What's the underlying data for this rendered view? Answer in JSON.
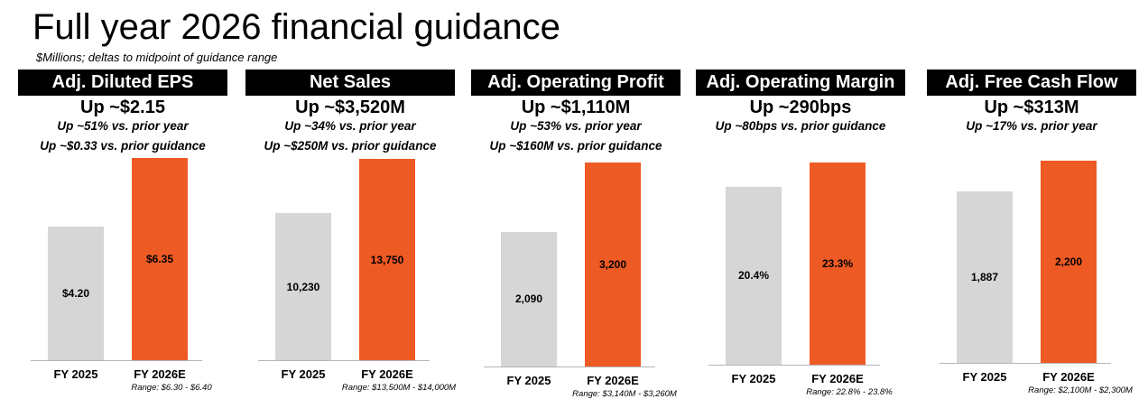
{
  "page": {
    "title": "Full year 2026 financial guidance",
    "subtitle": "$Millions; deltas to midpoint of guidance range"
  },
  "colors": {
    "header_bg": "#000000",
    "header_text": "#ffffff",
    "prior_bar": "#d6d6d6",
    "guidance_bar": "#ee5a24"
  },
  "panels": [
    {
      "header": "Adj. Diluted EPS",
      "headline": "Up ~$2.15",
      "sublines": [
        "Up ~51% vs. prior year",
        "Up ~$0.33 vs. prior guidance"
      ],
      "range_note": "Range: $6.30 - $6.40"
    },
    {
      "header": "Net Sales",
      "headline": "Up ~$3,520M",
      "sublines": [
        "Up ~34% vs. prior year",
        "Up ~$250M vs. prior guidance"
      ],
      "range_note": "Range: $13,500M - $14,000M"
    },
    {
      "header": "Adj. Operating Profit",
      "headline": "Up ~$1,110M",
      "sublines": [
        "Up ~53% vs. prior year",
        "Up ~$160M vs. prior guidance"
      ],
      "range_note": "Range: $3,140M - $3,260M"
    },
    {
      "header": "Adj. Operating Margin",
      "headline": "Up ~290bps",
      "sublines": [
        "Up ~80bps vs. prior guidance"
      ],
      "range_note": "Range: 22.8% - 23.8%"
    },
    {
      "header": "Adj. Free Cash Flow",
      "headline": "Up ~$313M",
      "sublines": [
        "Up ~17% vs. prior year"
      ],
      "range_note": "Range: $2,100M - $2,300M"
    }
  ],
  "chart_data": [
    {
      "type": "bar",
      "title": "Adj. Diluted EPS",
      "categories": [
        "FY 2025",
        "FY 2026E"
      ],
      "values": [
        4.2,
        6.35
      ],
      "value_labels": [
        "$4.20",
        "$6.35"
      ],
      "unit": "$"
    },
    {
      "type": "bar",
      "title": "Net Sales",
      "categories": [
        "FY 2025",
        "FY 2026E"
      ],
      "values": [
        10230,
        13750
      ],
      "value_labels": [
        "10,230",
        "13,750"
      ],
      "unit": "$M"
    },
    {
      "type": "bar",
      "title": "Adj. Operating Profit",
      "categories": [
        "FY 2025",
        "FY 2026E"
      ],
      "values": [
        2090,
        3200
      ],
      "value_labels": [
        "2,090",
        "3,200"
      ],
      "unit": "$M"
    },
    {
      "type": "bar",
      "title": "Adj. Operating Margin",
      "categories": [
        "FY 2025",
        "FY 2026E"
      ],
      "values": [
        20.4,
        23.3
      ],
      "value_labels": [
        "20.4%",
        "23.3%"
      ],
      "unit": "%"
    },
    {
      "type": "bar",
      "title": "Adj. Free Cash Flow",
      "categories": [
        "FY 2025",
        "FY 2026E"
      ],
      "values": [
        1887,
        2200
      ],
      "value_labels": [
        "1,887",
        "2,200"
      ],
      "unit": "$M"
    }
  ]
}
